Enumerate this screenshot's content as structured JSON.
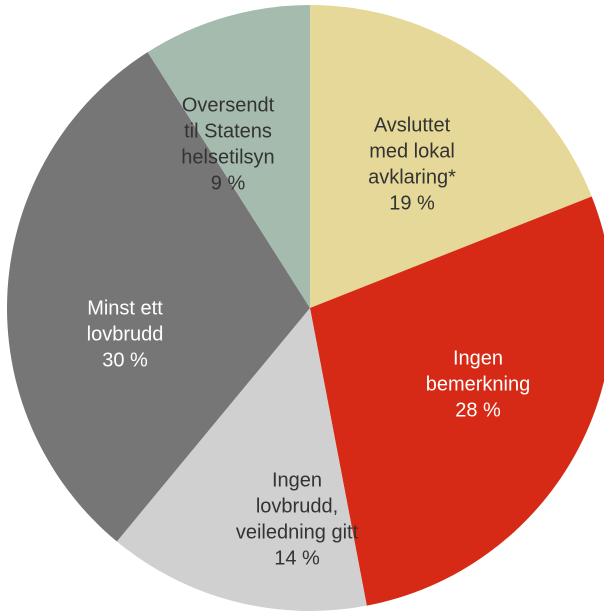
{
  "chart_data": {
    "type": "pie",
    "categories": [
      [
        "Avsluttet",
        "med lokal",
        "avklaring*"
      ],
      [
        "Ingen",
        "bemerkning"
      ],
      [
        "Ingen",
        "lovbrudd,",
        "veiledning gitt"
      ],
      [
        "Minst ett",
        "lovbrudd"
      ],
      [
        "Oversendt",
        "til Statens",
        "helsetilsyn"
      ]
    ],
    "values": [
      19,
      28,
      14,
      30,
      9
    ],
    "value_labels": [
      "19 %",
      "28 %",
      "14 %",
      "30 %",
      "9 %"
    ],
    "colors": [
      "#e5d899",
      "#d62a16",
      "#d0d0d0",
      "#767676",
      "#a5bbad"
    ]
  }
}
